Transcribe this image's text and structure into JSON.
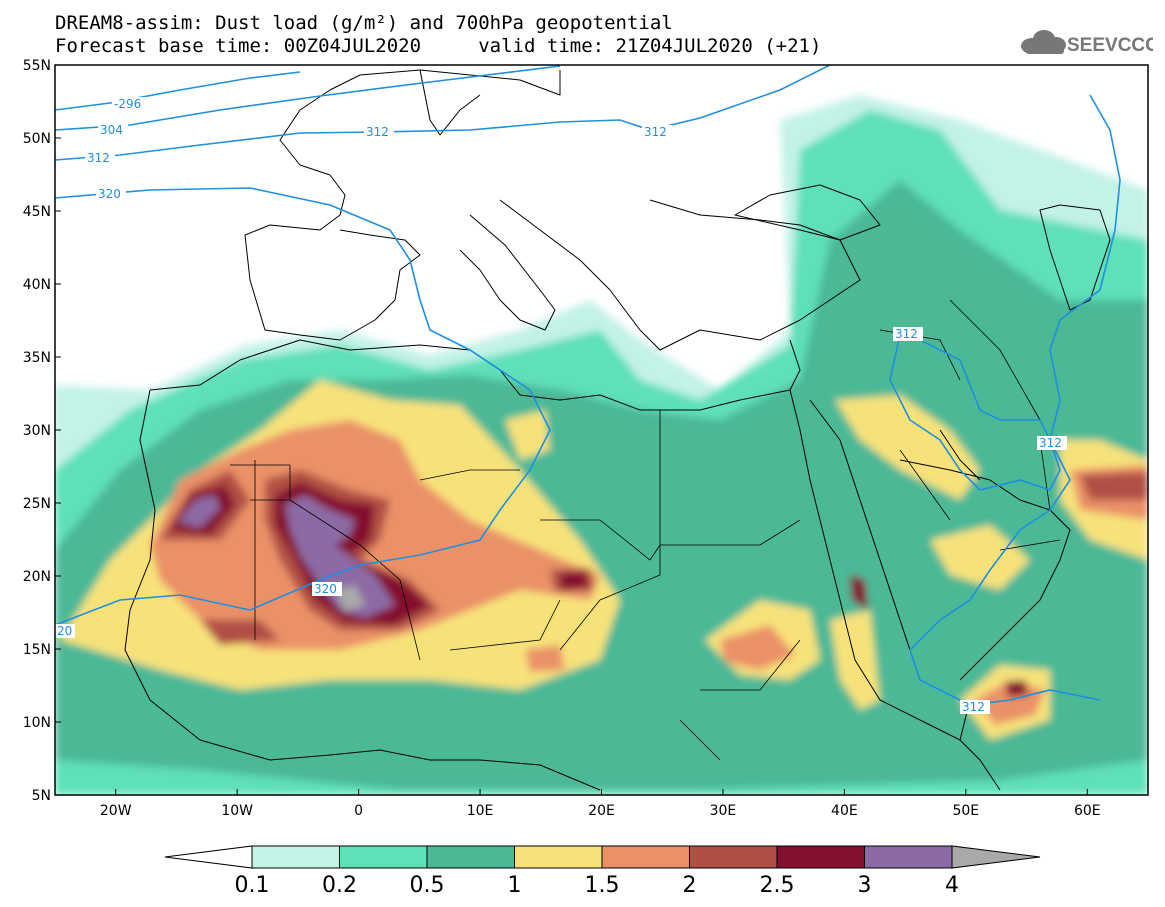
{
  "header": {
    "title_line1": "DREAM8-assim: Dust load (g/m²) and 700hPa geopotential",
    "title_line2": "Forecast base time: 00Z04JUL2020     valid time: 21Z04JUL2020 (+21)",
    "logo_text": "SEEVCCC"
  },
  "map": {
    "lat_labels": [
      "55N",
      "50N",
      "45N",
      "40N",
      "35N",
      "30N",
      "25N",
      "20N",
      "15N",
      "10N",
      "5N"
    ],
    "lon_labels": [
      "20W",
      "10W",
      "0",
      "10E",
      "20E",
      "30E",
      "40E",
      "50E",
      "60E"
    ],
    "lon_range": [
      -25,
      65
    ],
    "lat_range": [
      5,
      55
    ],
    "contour_labels": [
      "-296",
      "304",
      "312",
      "320",
      "312",
      "312",
      "312",
      "320",
      "20",
      "312",
      "312"
    ]
  },
  "colorbar": {
    "ticks": [
      "0.1",
      "0.2",
      "0.5",
      "1",
      "1.5",
      "2",
      "2.5",
      "3",
      "4"
    ],
    "colors": [
      "#c3f2e7",
      "#5ee0b8",
      "#4cb896",
      "#f7e27a",
      "#ea9168",
      "#b04f45",
      "#840f2e",
      "#8c6aa5",
      "#a9a9a9"
    ]
  },
  "colors": {
    "contour": "#1f8fe0",
    "coast": "#000000"
  }
}
